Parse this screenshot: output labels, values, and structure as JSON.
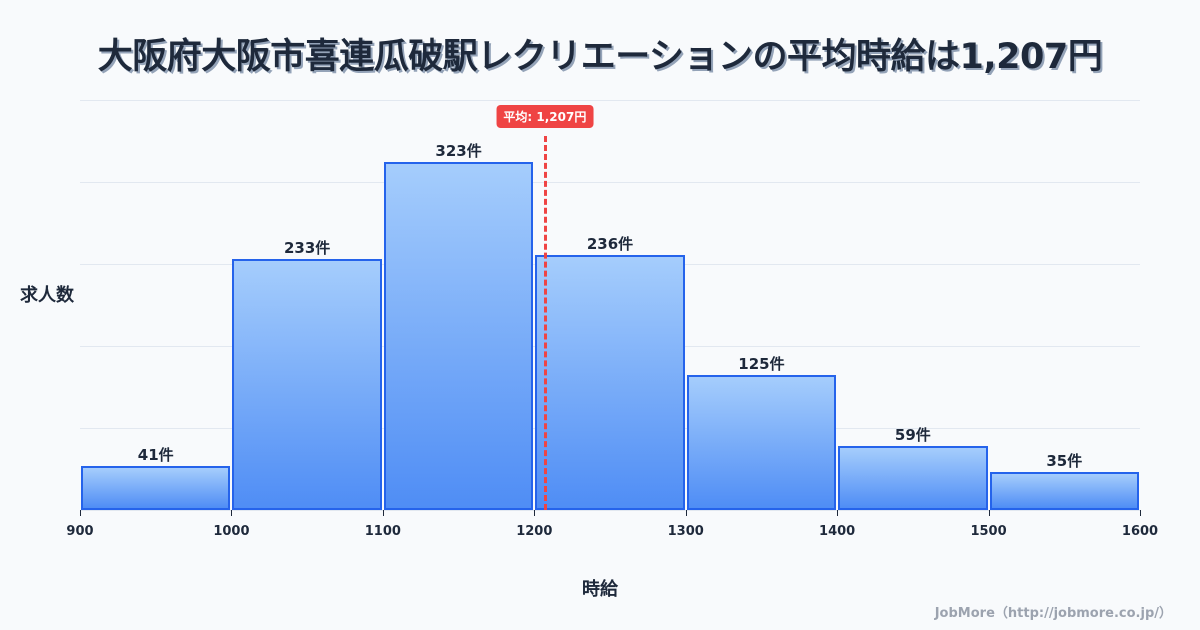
{
  "title": "大阪府大阪市喜連瓜破駅レクリエーションの平均時給は1,207円",
  "average_badge": "平均: 1,207円",
  "ylabel": "求人数",
  "xlabel": "時給",
  "footer": "JobMore（http://jobmore.co.jp/）",
  "colors": {
    "bar_border": "#2563eb",
    "bar_top": "#a5cdfc",
    "bar_bottom": "#4f8df5",
    "average_line": "#ef4444",
    "text": "#1e293b",
    "background": "#f8fafc"
  },
  "bars": [
    {
      "label": "41件"
    },
    {
      "label": "233件"
    },
    {
      "label": "323件"
    },
    {
      "label": "236件"
    },
    {
      "label": "125件"
    },
    {
      "label": "59件"
    },
    {
      "label": "35件"
    }
  ],
  "x_ticks": [
    "900",
    "1000",
    "1100",
    "1200",
    "1300",
    "1400",
    "1500",
    "1600"
  ],
  "chart_data": {
    "type": "bar",
    "subtype": "histogram",
    "title": "大阪府大阪市喜連瓜破駅レクリエーションの平均時給は1,207円",
    "xlabel": "時給",
    "ylabel": "求人数",
    "bins": [
      [
        900,
        1000
      ],
      [
        1000,
        1100
      ],
      [
        1100,
        1200
      ],
      [
        1200,
        1300
      ],
      [
        1300,
        1400
      ],
      [
        1400,
        1500
      ],
      [
        1500,
        1600
      ]
    ],
    "categories": [
      "900-1000",
      "1000-1100",
      "1100-1200",
      "1200-1300",
      "1300-1400",
      "1400-1500",
      "1500-1600"
    ],
    "values": [
      41,
      233,
      323,
      236,
      125,
      59,
      35
    ],
    "value_labels": [
      "41件",
      "233件",
      "323件",
      "236件",
      "125件",
      "59件",
      "35件"
    ],
    "xlim": [
      900,
      1600
    ],
    "ylim": [
      0,
      380
    ],
    "x_ticks": [
      900,
      1000,
      1100,
      1200,
      1300,
      1400,
      1500,
      1600
    ],
    "grid": {
      "horizontal": true,
      "vertical": false
    },
    "annotations": [
      {
        "type": "vline",
        "x": 1207,
        "label": "平均: 1,207円",
        "style": "dashed",
        "color": "#ef4444"
      }
    ],
    "legend": null
  }
}
